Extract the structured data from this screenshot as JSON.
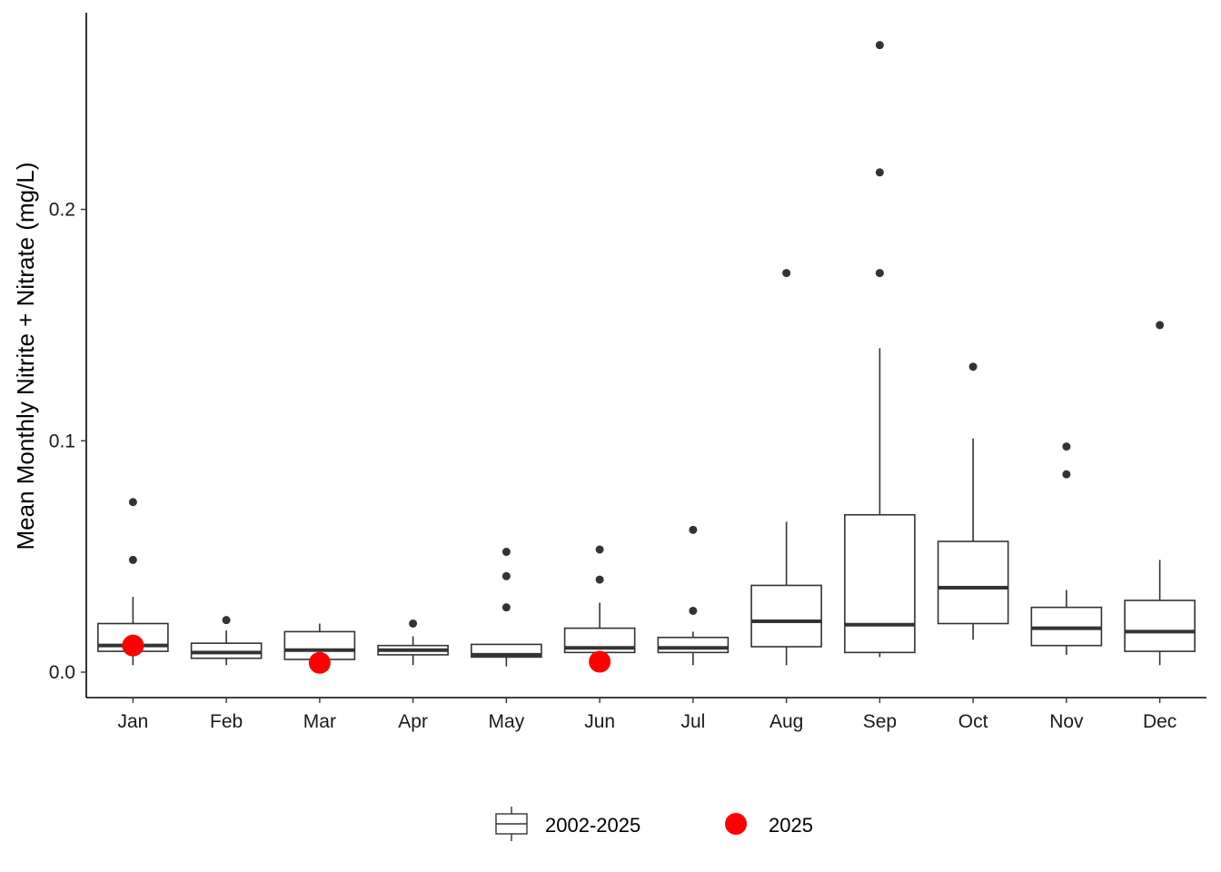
{
  "chart_data": {
    "type": "boxplot",
    "title": "",
    "xlabel": "",
    "ylabel": "Mean Monthly Nitrite + Nitrate (mg/L)",
    "ylim": [
      -0.011,
      0.285
    ],
    "yticks": [
      0.0,
      0.1,
      0.2
    ],
    "ytick_labels": [
      "0.0",
      "0.1",
      "0.2"
    ],
    "grid": false,
    "legend_position": "bottom",
    "categories": [
      "Jan",
      "Feb",
      "Mar",
      "Apr",
      "May",
      "Jun",
      "Jul",
      "Aug",
      "Sep",
      "Oct",
      "Nov",
      "Dec"
    ],
    "series": [
      {
        "name": "2002-2025",
        "kind": "box",
        "color": "#333333",
        "boxes": [
          {
            "min": 0.003,
            "q1": 0.009,
            "median": 0.0115,
            "q3": 0.021,
            "max": 0.0325,
            "outliers": [
              0.0735,
              0.0485
            ]
          },
          {
            "min": 0.003,
            "q1": 0.006,
            "median": 0.0085,
            "q3": 0.0125,
            "max": 0.018,
            "outliers": [
              0.0225
            ]
          },
          {
            "min": 0.005,
            "q1": 0.0055,
            "median": 0.0095,
            "q3": 0.0175,
            "max": 0.021,
            "outliers": []
          },
          {
            "min": 0.003,
            "q1": 0.0075,
            "median": 0.0095,
            "q3": 0.0115,
            "max": 0.0155,
            "outliers": [
              0.021
            ]
          },
          {
            "min": 0.0025,
            "q1": 0.0065,
            "median": 0.0075,
            "q3": 0.012,
            "max": 0.012,
            "outliers": [
              0.052,
              0.0415,
              0.028
            ]
          },
          {
            "min": 0.004,
            "q1": 0.0085,
            "median": 0.0105,
            "q3": 0.019,
            "max": 0.03,
            "outliers": [
              0.053,
              0.04
            ]
          },
          {
            "min": 0.003,
            "q1": 0.0085,
            "median": 0.0105,
            "q3": 0.015,
            "max": 0.0175,
            "outliers": [
              0.0615,
              0.0265
            ]
          },
          {
            "min": 0.003,
            "q1": 0.011,
            "median": 0.022,
            "q3": 0.0375,
            "max": 0.065,
            "outliers": [
              0.1725
            ]
          },
          {
            "min": 0.0065,
            "q1": 0.0085,
            "median": 0.0205,
            "q3": 0.068,
            "max": 0.14,
            "outliers": [
              0.271,
              0.216,
              0.1725
            ]
          },
          {
            "min": 0.014,
            "q1": 0.021,
            "median": 0.0365,
            "q3": 0.0565,
            "max": 0.101,
            "outliers": [
              0.132
            ]
          },
          {
            "min": 0.0075,
            "q1": 0.0115,
            "median": 0.019,
            "q3": 0.028,
            "max": 0.0355,
            "outliers": [
              0.0975,
              0.0855
            ]
          },
          {
            "min": 0.003,
            "q1": 0.009,
            "median": 0.0175,
            "q3": 0.031,
            "max": 0.0485,
            "outliers": [
              0.15
            ]
          }
        ]
      },
      {
        "name": "2025",
        "kind": "point",
        "color": "#ff0000",
        "points": [
          {
            "x": "Jan",
            "y": 0.0115
          },
          {
            "x": "Mar",
            "y": 0.004
          },
          {
            "x": "Jun",
            "y": 0.0045
          }
        ]
      }
    ]
  }
}
